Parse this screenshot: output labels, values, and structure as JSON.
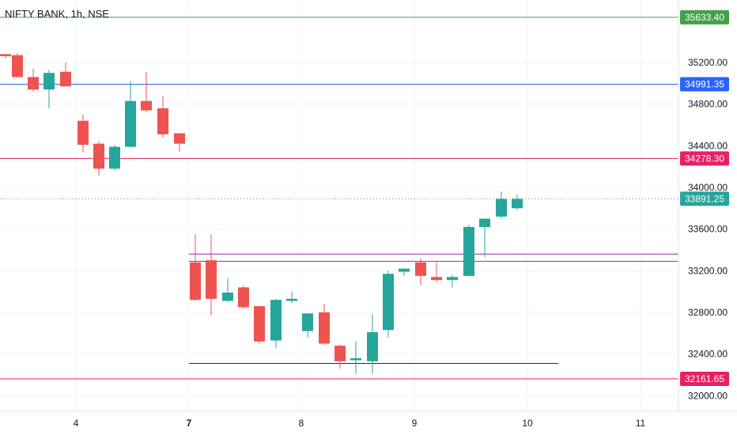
{
  "header": {
    "symbol_label": "NIFTY BANK, 1h, NSE"
  },
  "colors": {
    "up": "#26a69a",
    "down": "#ef5350",
    "grid": "#f0f3fa",
    "axis_text": "#131722"
  },
  "chart_data": {
    "type": "candlestick",
    "title": "NIFTY BANK, 1h, NSE",
    "ylim": [
      31850,
      35800
    ],
    "xlim": [
      0,
      858
    ],
    "y_ticks": [
      32000,
      32400,
      32800,
      33200,
      33600,
      34000,
      34400,
      34800,
      35200
    ],
    "y_tick_labels": [
      "32000.00",
      "32400.00",
      "32800.00",
      "33200.00",
      "33600.00",
      "34000.00",
      "34400.00",
      "34800.00",
      "35200.00"
    ],
    "x_ticks": [
      {
        "label": "4",
        "x": 96,
        "bold": false
      },
      {
        "label": "7",
        "x": 239,
        "bold": true
      },
      {
        "label": "8",
        "x": 381,
        "bold": false
      },
      {
        "label": "9",
        "x": 524,
        "bold": false
      },
      {
        "label": "10",
        "x": 667,
        "bold": false
      },
      {
        "label": "11",
        "x": 810,
        "bold": false
      }
    ],
    "candles": [
      {
        "x": 0,
        "o": 35280,
        "h": 35280,
        "l": 35240,
        "c": 35260
      },
      {
        "x": 15,
        "o": 35270,
        "h": 35290,
        "l": 35050,
        "c": 35060
      },
      {
        "x": 35,
        "o": 35060,
        "h": 35140,
        "l": 34920,
        "c": 34940
      },
      {
        "x": 55,
        "o": 34940,
        "h": 35130,
        "l": 34760,
        "c": 35100
      },
      {
        "x": 76,
        "o": 35110,
        "h": 35200,
        "l": 34980,
        "c": 34970
      },
      {
        "x": 98,
        "o": 34640,
        "h": 34700,
        "l": 34340,
        "c": 34410
      },
      {
        "x": 118,
        "o": 34420,
        "h": 34440,
        "l": 34110,
        "c": 34180
      },
      {
        "x": 138,
        "o": 34180,
        "h": 34410,
        "l": 34160,
        "c": 34390
      },
      {
        "x": 158,
        "o": 34390,
        "h": 35020,
        "l": 34380,
        "c": 34830
      },
      {
        "x": 178,
        "o": 34830,
        "h": 35110,
        "l": 34720,
        "c": 34740
      },
      {
        "x": 199,
        "o": 34760,
        "h": 34880,
        "l": 34480,
        "c": 34510
      },
      {
        "x": 220,
        "o": 34520,
        "h": 34520,
        "l": 34340,
        "c": 34420
      },
      {
        "x": 240,
        "o": 33280,
        "h": 33550,
        "l": 32910,
        "c": 32920
      },
      {
        "x": 260,
        "o": 33300,
        "h": 33550,
        "l": 32770,
        "c": 32930
      },
      {
        "x": 281,
        "o": 32910,
        "h": 33130,
        "l": 32900,
        "c": 32990
      },
      {
        "x": 301,
        "o": 33040,
        "h": 33060,
        "l": 32830,
        "c": 32850
      },
      {
        "x": 321,
        "o": 32860,
        "h": 32860,
        "l": 32500,
        "c": 32520
      },
      {
        "x": 342,
        "o": 32530,
        "h": 32930,
        "l": 32460,
        "c": 32920
      },
      {
        "x": 362,
        "o": 32910,
        "h": 33000,
        "l": 32890,
        "c": 32930
      },
      {
        "x": 382,
        "o": 32620,
        "h": 32790,
        "l": 32560,
        "c": 32790
      },
      {
        "x": 403,
        "o": 32800,
        "h": 32880,
        "l": 32490,
        "c": 32500
      },
      {
        "x": 423,
        "o": 32480,
        "h": 32490,
        "l": 32260,
        "c": 32330
      },
      {
        "x": 443,
        "o": 32340,
        "h": 32520,
        "l": 32210,
        "c": 32360
      },
      {
        "x": 464,
        "o": 32330,
        "h": 32780,
        "l": 32210,
        "c": 32610
      },
      {
        "x": 484,
        "o": 32630,
        "h": 33200,
        "l": 32560,
        "c": 33170
      },
      {
        "x": 504,
        "o": 33190,
        "h": 33210,
        "l": 33150,
        "c": 33220
      },
      {
        "x": 525,
        "o": 33280,
        "h": 33320,
        "l": 33060,
        "c": 33150
      },
      {
        "x": 545,
        "o": 33140,
        "h": 33280,
        "l": 33090,
        "c": 33110
      },
      {
        "x": 565,
        "o": 33110,
        "h": 33160,
        "l": 33040,
        "c": 33140
      },
      {
        "x": 586,
        "o": 33150,
        "h": 33640,
        "l": 33150,
        "c": 33620
      },
      {
        "x": 606,
        "o": 33620,
        "h": 33700,
        "l": 33330,
        "c": 33700
      },
      {
        "x": 627,
        "o": 33720,
        "h": 33960,
        "l": 33700,
        "c": 33890
      },
      {
        "x": 647,
        "o": 33800,
        "h": 33930,
        "l": 33780,
        "c": 33890
      }
    ],
    "levels": [
      {
        "value": 35633.4,
        "label": "35633.40",
        "color": "#43a047"
      },
      {
        "value": 34991.35,
        "label": "34991.35",
        "color": "#2962ff"
      },
      {
        "value": 34278.3,
        "label": "34278.30",
        "color": "#e91e63"
      },
      {
        "value": 33891.25,
        "label": "33891.25",
        "color": "#26a69a",
        "dotted": true
      },
      {
        "value": 32161.65,
        "label": "32161.65",
        "color": "#e91e63"
      }
    ],
    "segments": [
      {
        "x1": 239,
        "x2": 858,
        "y": 33360,
        "color": "#9c27b0"
      },
      {
        "x1": 239,
        "x2": 858,
        "y": 33290,
        "color": "#9c27b0"
      },
      {
        "x1": 239,
        "x2": 706,
        "y": 32310,
        "color": "#1a237e"
      }
    ]
  }
}
